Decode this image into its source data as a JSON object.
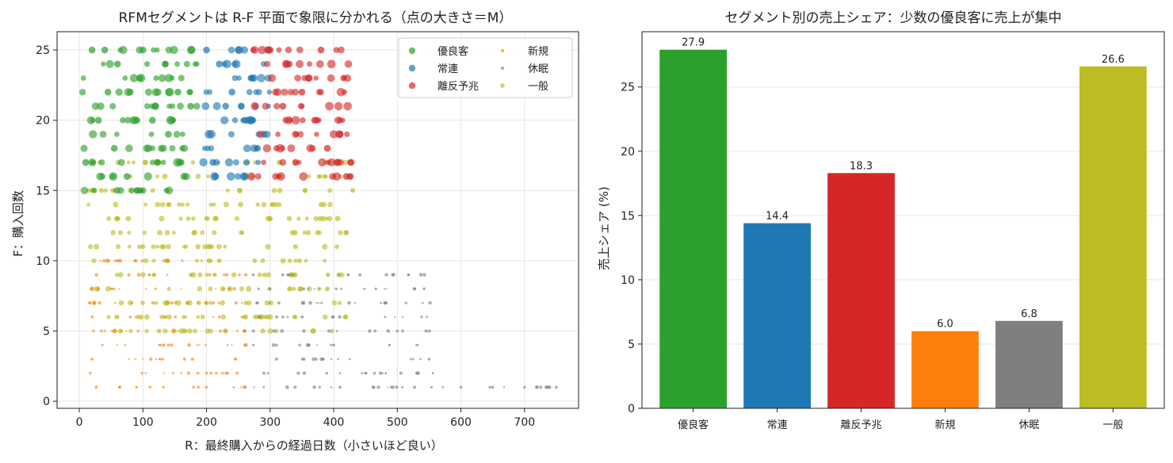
{
  "chart_data": [
    {
      "type": "scatter",
      "title": "RFMセグメントは R-F 平面で象限に分かれる（点の大きさ＝M）",
      "xlabel": "R：最終購入からの経過日数（小さいほど良い）",
      "ylabel": "F：購入回数",
      "xlim": [
        -35,
        785
      ],
      "ylim": [
        -0.5,
        26.3
      ],
      "xticks": [
        "0",
        "100",
        "200",
        "300",
        "400",
        "500",
        "600",
        "700"
      ],
      "yticks": [
        "0",
        "5",
        "10",
        "15",
        "20",
        "25"
      ],
      "grid": true,
      "legend_position": "top-right",
      "series": [
        {
          "name": "優良客",
          "color": "#2ca02c",
          "size_class": "large",
          "regions": [
            {
              "x_range": [
                5,
                185
              ],
              "f_range": [
                15,
                25
              ]
            }
          ],
          "points": [
            [
              20,
              25
            ],
            [
              40,
              25
            ],
            [
              60,
              24
            ],
            [
              80,
              22
            ],
            [
              100,
              25
            ],
            [
              120,
              21
            ],
            [
              140,
              19
            ],
            [
              160,
              17
            ],
            [
              30,
              20
            ],
            [
              55,
              18
            ],
            [
              75,
              16
            ],
            [
              95,
              23
            ],
            [
              115,
              20
            ],
            [
              135,
              24
            ],
            [
              155,
              22
            ],
            [
              175,
              21
            ],
            [
              10,
              17
            ],
            [
              45,
              22
            ]
          ]
        },
        {
          "name": "常連",
          "color": "#1f77b4",
          "size_class": "large",
          "regions": [
            {
              "x_range": [
                190,
                300
              ],
              "f_range": [
                16,
                25
              ]
            }
          ],
          "points": [
            [
              200,
              25
            ],
            [
              220,
              24
            ],
            [
              240,
              22
            ],
            [
              260,
              20
            ],
            [
              280,
              18
            ],
            [
              210,
              17
            ],
            [
              230,
              21
            ],
            [
              250,
              25
            ],
            [
              270,
              23
            ],
            [
              290,
              19
            ]
          ]
        },
        {
          "name": "離反予兆",
          "color": "#d62728",
          "size_class": "large",
          "regions": [
            {
              "x_range": [
                270,
                430
              ],
              "f_range": [
                16,
                25
              ]
            }
          ],
          "points": [
            [
              300,
              25
            ],
            [
              330,
              24
            ],
            [
              350,
              22
            ],
            [
              370,
              20
            ],
            [
              390,
              18
            ],
            [
              410,
              19
            ],
            [
              320,
              21
            ],
            [
              340,
              17
            ],
            [
              360,
              23
            ],
            [
              380,
              25
            ],
            [
              420,
              16
            ]
          ]
        },
        {
          "name": "新規",
          "color": "#ff7f0e",
          "size_class": "small",
          "regions": [
            {
              "x_range": [
                15,
                270
              ],
              "f_range": [
                1,
                10
              ]
            }
          ],
          "points": [
            [
              20,
              3
            ],
            [
              50,
              8
            ],
            [
              80,
              6
            ],
            [
              110,
              9
            ],
            [
              140,
              4
            ],
            [
              170,
              7
            ],
            [
              200,
              2
            ],
            [
              230,
              5
            ],
            [
              90,
              1
            ],
            [
              60,
              10
            ]
          ]
        },
        {
          "name": "休眠",
          "color": "#7f7f7f",
          "size_class": "small",
          "regions": [
            {
              "x_range": [
                270,
                560
              ],
              "f_range": [
                1,
                9
              ]
            },
            {
              "x_range": [
                550,
                760
              ],
              "f_range": [
                1,
                1
              ]
            }
          ],
          "points": [
            [
              300,
              8
            ],
            [
              350,
              6
            ],
            [
              400,
              4
            ],
            [
              450,
              2
            ],
            [
              500,
              5
            ],
            [
              550,
              3
            ],
            [
              600,
              1
            ],
            [
              650,
              1
            ],
            [
              700,
              1
            ],
            [
              750,
              1
            ],
            [
              320,
              9
            ],
            [
              480,
              7
            ]
          ]
        },
        {
          "name": "一般",
          "color": "#bcbd22",
          "size_class": "medium",
          "regions": [
            {
              "x_range": [
                10,
                420
              ],
              "f_range": [
                5,
                17
              ]
            }
          ],
          "points": [
            [
              20,
              15
            ],
            [
              60,
              13
            ],
            [
              100,
              11
            ],
            [
              140,
              14
            ],
            [
              180,
              12
            ],
            [
              220,
              10
            ],
            [
              260,
              16
            ],
            [
              300,
              13
            ],
            [
              340,
              11
            ],
            [
              380,
              14
            ],
            [
              420,
              12
            ],
            [
              430,
              15
            ],
            [
              390,
              8
            ],
            [
              280,
              6
            ]
          ]
        }
      ]
    },
    {
      "type": "bar",
      "title": "セグメント別の売上シェア：少数の優良客に売上が集中",
      "xlabel": "",
      "ylabel": "売上シェア (%)",
      "ylim": [
        0,
        29.3
      ],
      "yticks": [
        "0",
        "5",
        "10",
        "15",
        "20",
        "25"
      ],
      "grid": true,
      "categories": [
        "優良客",
        "常連",
        "離反予兆",
        "新規",
        "休眠",
        "一般"
      ],
      "values": [
        27.9,
        14.4,
        18.3,
        6.0,
        6.8,
        26.6
      ],
      "value_labels": [
        "27.9",
        "14.4",
        "18.3",
        "6.0",
        "6.8",
        "26.6"
      ],
      "colors": [
        "#2ca02c",
        "#1f77b4",
        "#d62728",
        "#ff7f0e",
        "#7f7f7f",
        "#bcbd22"
      ]
    }
  ]
}
